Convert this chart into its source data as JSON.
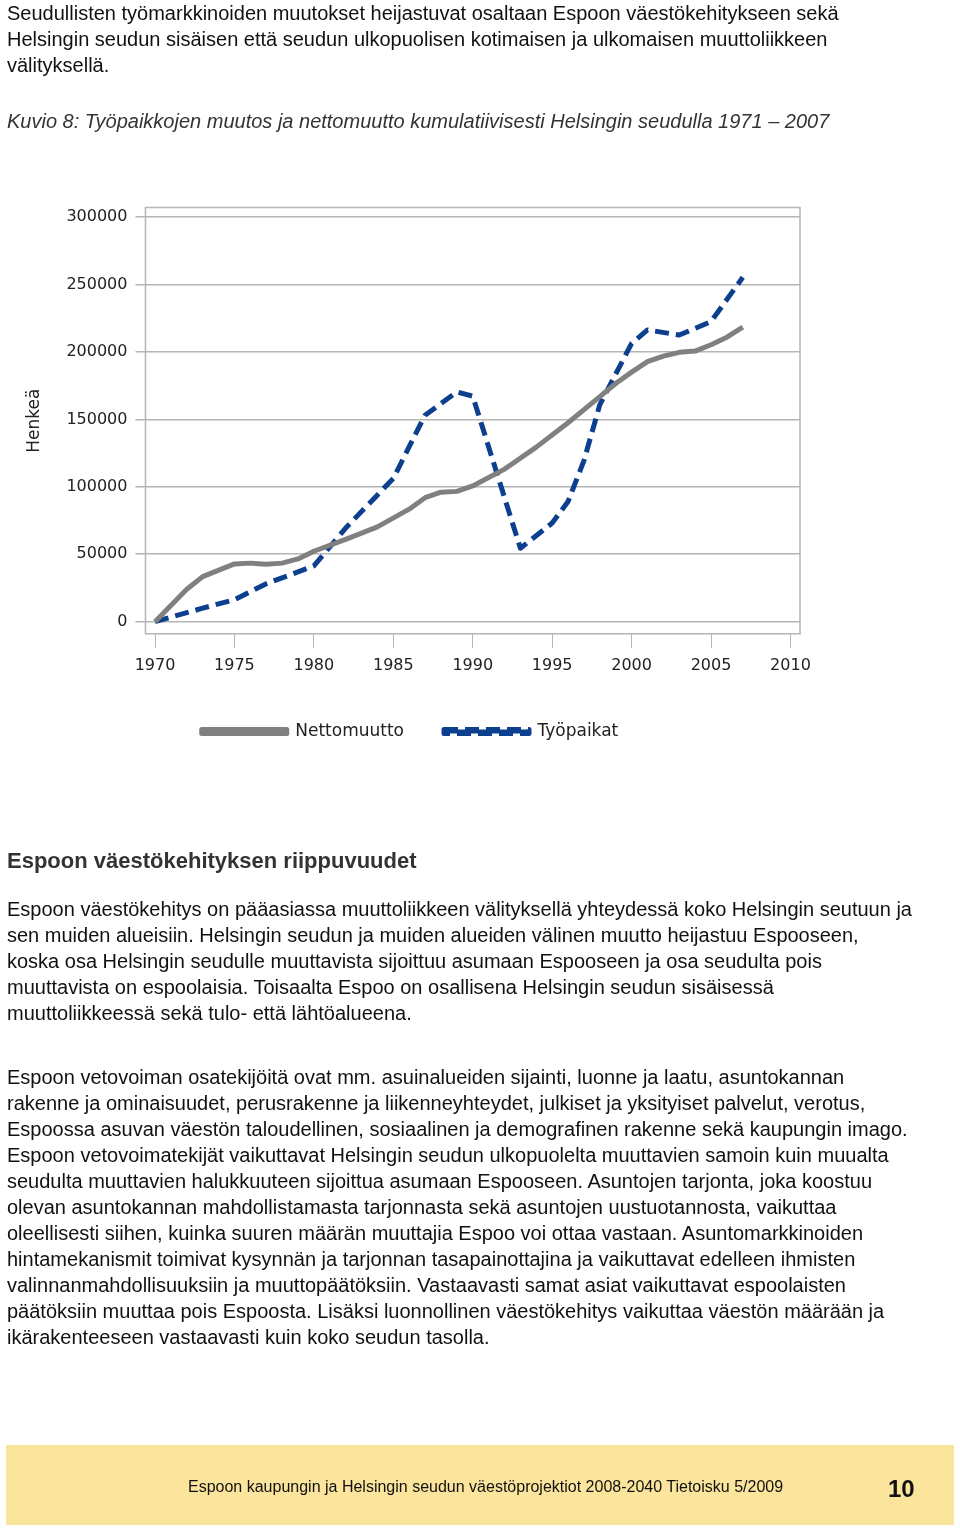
{
  "chart_data": {
    "type": "line",
    "title": "Kuvio 8: Työpaikkojen muutos ja nettomuutto kumulatiivisesti Helsingin seudulla 1971 – 2007",
    "ylabel": "Henkeä",
    "series": [
      {
        "name": "Nettomuutto",
        "color": "#808080",
        "line_style": "solid",
        "x": [
          1970,
          1972,
          1973,
          1975,
          1976,
          1977,
          1978,
          1979,
          1980,
          1982,
          1984,
          1986,
          1987,
          1988,
          1989,
          1990,
          1992,
          1994,
          1996,
          1998,
          1999,
          2000,
          2001,
          2002,
          2003,
          2004,
          2005,
          2006,
          2007
        ],
        "values": [
          0,
          24000,
          33400,
          42800,
          43400,
          42500,
          43400,
          46500,
          52200,
          61000,
          70300,
          83400,
          91900,
          96000,
          96600,
          100600,
          113100,
          129400,
          147500,
          166900,
          176600,
          185000,
          192800,
          196900,
          199700,
          200600,
          205300,
          210900,
          218400
        ]
      },
      {
        "name": "Työpaikat",
        "color": "#0d3f8f",
        "line_style": "dashed",
        "x": [
          1970,
          1973,
          1975,
          1977,
          1980,
          1982,
          1985,
          1987,
          1989,
          1990,
          1993,
          1995,
          1996,
          1997,
          1998,
          2000,
          2001,
          2003,
          2005,
          2007
        ],
        "values": [
          0,
          10000,
          16300,
          28100,
          41300,
          69400,
          106200,
          153100,
          170300,
          167200,
          54400,
          73100,
          89100,
          119400,
          160900,
          206300,
          216300,
          212500,
          222500,
          255300
        ]
      }
    ],
    "xlim": [
      1969.4,
      2010.6
    ],
    "xticks": [
      1970,
      1975,
      1980,
      1985,
      1990,
      1995,
      2000,
      2005,
      2010
    ],
    "ylim": [
      -9000,
      307000
    ],
    "yticks": [
      0,
      50000,
      100000,
      150000,
      200000,
      250000,
      300000
    ],
    "grid": "y",
    "legend": "bottom",
    "marker": "none",
    "annotations": [
      "Seudullisten työmarkkinoiden muutokset heijastuvat osaltaan Espoon väestökehitykseen sekä Helsingin seudun sisäisen että seudun ulkopuolisen kotimaisen ja ulkomaisen muuttoliikkeen välityksellä.",
      "Espoon väestökehityksen riippuvuudet",
      "Espoon väestökehitys on pääasiassa muuttoliikkeen välityksellä yhteydessä koko Helsingin seutuun ja sen muiden alueisiin. Helsingin seudun ja muiden alueiden välinen muutto heijastuu Espooseen, koska osa Helsingin seudulle muuttavista sijoittuu asumaan Espooseen ja osa seudulta pois muuttavista on espoolaisia. Toisaalta Espoo on osallisena Helsingin seudun sisäisessä muuttoliikkeessä sekä tulo- että lähtöalueena.",
      "Espoon vetovoiman osatekijöitä ovat mm. asuinalueiden sijainti, luonne ja laatu, asuntokannan rakenne ja ominaisuudet, perusrakenne ja liikenneyhteydet, julkiset ja yksityiset palvelut, verotus, Espoossa asuvan väestön taloudellinen, sosiaalinen ja demografinen rakenne sekä kaupungin imago. Espoon vetovoimatekijät vaikuttavat Helsingin seudun ulkopuolelta muuttavien samoin kuin muualta seudulta muuttavien halukkuuteen sijoittua asumaan Espooseen. Asuntojen tarjonta, joka koostuu olevan asuntokannan mahdollistamasta tarjonnasta sekä asuntojen uustuotannosta, vaikuttaa oleellisesti siihen, kuinka suuren määrän muuttajia Espoo voi ottaa vastaan. Asuntomarkkinoiden hintamekanismit toimivat kysynnän ja tarjonnan tasapainottajina ja vaikuttavat edelleen ihmisten valinnanmahdollisuuksiin ja muuttopäätöksiin. Vastaavasti samat asiat vaikuttavat espoolaisten päätöksiin muuttaa pois Espoosta. Lisäksi luonnollinen väestökehitys vaikuttaa väestön määrään ja ikärakenteeseen vastaavasti kuin koko seudun tasolla.",
      "Espoon kaupungin ja Helsingin seudun väestöprojektiot 2008-2040 Tietoisku 5/2009",
      "10"
    ]
  }
}
